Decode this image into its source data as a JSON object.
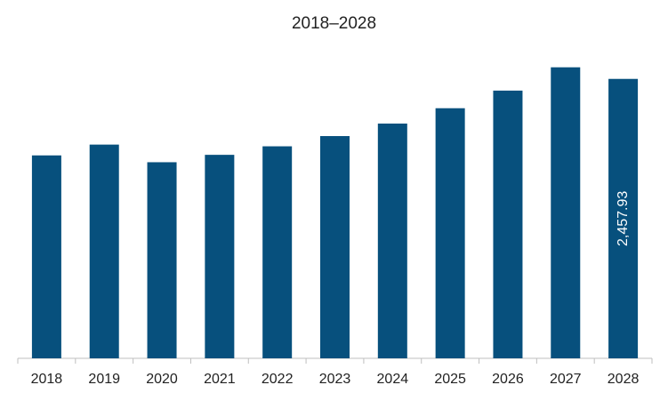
{
  "chart_data": {
    "type": "bar",
    "title": "2018–2028",
    "xlabel": "",
    "ylabel": "",
    "categories": [
      "2018",
      "2019",
      "2020",
      "2021",
      "2022",
      "2023",
      "2024",
      "2025",
      "2026",
      "2027",
      "2028"
    ],
    "values": [
      1785,
      1880,
      1725,
      1790,
      1865,
      1955,
      2065,
      2200,
      2355,
      2560,
      2457.93
    ],
    "data_labels": {
      "2028": "2,457.93"
    },
    "ylim": [
      0,
      2800
    ],
    "grid": false,
    "legend": "none",
    "bar_color": "#07507d"
  }
}
